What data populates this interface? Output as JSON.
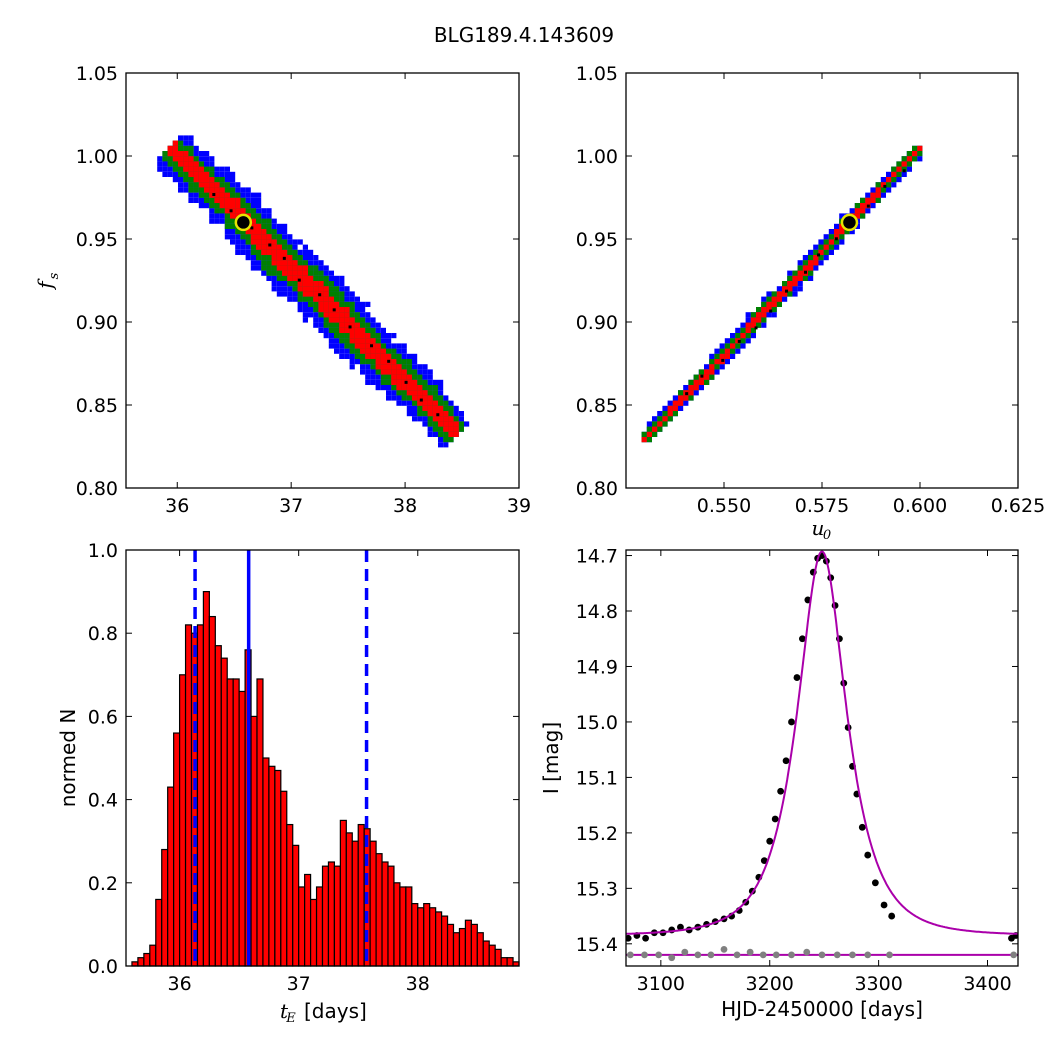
{
  "figure": {
    "title": "BLG189.4.143609"
  },
  "chart_data": [
    {
      "id": "fs-vs-tE",
      "type": "heatmap",
      "xlabel": "",
      "ylabel": "f_s",
      "xlim": [
        35.55,
        39.0
      ],
      "ylim": [
        0.8,
        1.05
      ],
      "xticks": [
        "36",
        "37",
        "38",
        "39"
      ],
      "yticks": [
        "0.80",
        "0.85",
        "0.90",
        "0.95",
        "1.00",
        "1.05"
      ],
      "colors": {
        "outer": "#0000ff",
        "middle": "#008000",
        "inner": "#ff0000",
        "sample": "#000000"
      },
      "band": {
        "start": [
          35.95,
          1.005
        ],
        "end": [
          38.45,
          0.833
        ]
      },
      "best_fit": {
        "x": 36.58,
        "y": 0.96
      }
    },
    {
      "id": "fs-vs-u0",
      "type": "heatmap",
      "xlabel": "u_0",
      "ylabel": "",
      "xlim": [
        0.525,
        0.625
      ],
      "ylim": [
        0.8,
        1.05
      ],
      "xticks": [
        "0.550",
        "0.575",
        "0.600",
        "0.625"
      ],
      "yticks": [
        "0.80",
        "0.85",
        "0.90",
        "0.95",
        "1.00",
        "1.05"
      ],
      "colors": {
        "outer": "#0000ff",
        "middle": "#008000",
        "inner": "#ff0000",
        "sample": "#000000"
      },
      "band": {
        "start": [
          0.53,
          0.83
        ],
        "end": [
          0.6,
          1.005
        ]
      },
      "best_fit": {
        "x": 0.582,
        "y": 0.96
      }
    },
    {
      "id": "tE-histogram",
      "type": "bar",
      "xlabel": "t_E [days]",
      "ylabel": "normed N",
      "xlim": [
        35.55,
        38.85
      ],
      "ylim": [
        0.0,
        1.0
      ],
      "xticks": [
        "36",
        "37",
        "38"
      ],
      "yticks": [
        "0.0",
        "0.2",
        "0.4",
        "0.6",
        "0.8",
        "1.0"
      ],
      "bin_start": 35.55,
      "bin_width": 0.05,
      "values": [
        0.0,
        0.01,
        0.02,
        0.03,
        0.05,
        0.16,
        0.28,
        0.43,
        0.56,
        0.7,
        0.82,
        0.8,
        0.82,
        0.9,
        0.84,
        0.77,
        0.74,
        0.69,
        0.69,
        0.66,
        0.76,
        0.6,
        0.69,
        0.5,
        0.48,
        0.47,
        0.42,
        0.34,
        0.29,
        0.19,
        0.22,
        0.16,
        0.19,
        0.24,
        0.25,
        0.24,
        0.35,
        0.32,
        0.3,
        0.34,
        0.33,
        0.3,
        0.27,
        0.25,
        0.24,
        0.2,
        0.19,
        0.19,
        0.15,
        0.14,
        0.15,
        0.14,
        0.13,
        0.12,
        0.1,
        0.08,
        0.09,
        0.11,
        0.1,
        0.08,
        0.06,
        0.05,
        0.04,
        0.02,
        0.02,
        0.01
      ],
      "bar_color": "#ff0000",
      "lines": [
        {
          "x": 36.58,
          "style": "solid",
          "color": "#0000ff"
        },
        {
          "x": 36.13,
          "style": "dashed",
          "color": "#0000ff"
        },
        {
          "x": 37.57,
          "style": "dashed",
          "color": "#0000ff"
        }
      ]
    },
    {
      "id": "light-curve",
      "type": "scatter",
      "xlabel": "HJD-2450000 [days]",
      "ylabel": "I [mag]",
      "xlim": [
        3068,
        3428
      ],
      "ylim": [
        15.44,
        14.69
      ],
      "xticks": [
        "3100",
        "3200",
        "3300",
        "3400"
      ],
      "yticks": [
        "14.7",
        "14.8",
        "14.9",
        "15.0",
        "15.1",
        "15.2",
        "15.3",
        "15.4"
      ],
      "model": {
        "t0": 3248,
        "u0": 0.582,
        "tE": 36.58,
        "fs": 0.96,
        "base_mag": 15.385,
        "color": "#aa00aa"
      },
      "baseline": {
        "mag": 15.42,
        "color": "#aa00aa"
      },
      "series": [
        {
          "color": "#000000",
          "points": [
            [
              3070,
              15.39
            ],
            [
              3078,
              15.385
            ],
            [
              3086,
              15.39
            ],
            [
              3094,
              15.38
            ],
            [
              3102,
              15.38
            ],
            [
              3110,
              15.375
            ],
            [
              3118,
              15.37
            ],
            [
              3126,
              15.375
            ],
            [
              3134,
              15.37
            ],
            [
              3142,
              15.365
            ],
            [
              3150,
              15.36
            ],
            [
              3158,
              15.355
            ],
            [
              3165,
              15.35
            ],
            [
              3172,
              15.34
            ],
            [
              3178,
              15.325
            ],
            [
              3184,
              15.305
            ],
            [
              3190,
              15.28
            ],
            [
              3195,
              15.25
            ],
            [
              3200,
              15.215
            ],
            [
              3205,
              15.175
            ],
            [
              3210,
              15.125
            ],
            [
              3215,
              15.07
            ],
            [
              3220,
              15.0
            ],
            [
              3225,
              14.92
            ],
            [
              3230,
              14.85
            ],
            [
              3235,
              14.78
            ],
            [
              3240,
              14.73
            ],
            [
              3244,
              14.705
            ],
            [
              3248,
              14.7
            ],
            [
              3252,
              14.71
            ],
            [
              3256,
              14.74
            ],
            [
              3260,
              14.79
            ],
            [
              3264,
              14.85
            ],
            [
              3268,
              14.93
            ],
            [
              3272,
              15.01
            ],
            [
              3276,
              15.08
            ],
            [
              3280,
              15.13
            ],
            [
              3285,
              15.19
            ],
            [
              3290,
              15.24
            ],
            [
              3297,
              15.29
            ],
            [
              3305,
              15.33
            ],
            [
              3312,
              15.35
            ],
            [
              3422,
              15.39
            ],
            [
              3426,
              15.385
            ]
          ]
        },
        {
          "color": "#808080",
          "points": [
            [
              3072,
              15.42
            ],
            [
              3085,
              15.42
            ],
            [
              3098,
              15.42
            ],
            [
              3110,
              15.425
            ],
            [
              3122,
              15.415
            ],
            [
              3134,
              15.42
            ],
            [
              3146,
              15.42
            ],
            [
              3158,
              15.41
            ],
            [
              3170,
              15.42
            ],
            [
              3182,
              15.415
            ],
            [
              3194,
              15.42
            ],
            [
              3206,
              15.42
            ],
            [
              3220,
              15.42
            ],
            [
              3234,
              15.415
            ],
            [
              3248,
              15.42
            ],
            [
              3262,
              15.42
            ],
            [
              3276,
              15.42
            ],
            [
              3290,
              15.42
            ],
            [
              3310,
              15.42
            ],
            [
              3424,
              15.42
            ]
          ]
        }
      ]
    }
  ]
}
